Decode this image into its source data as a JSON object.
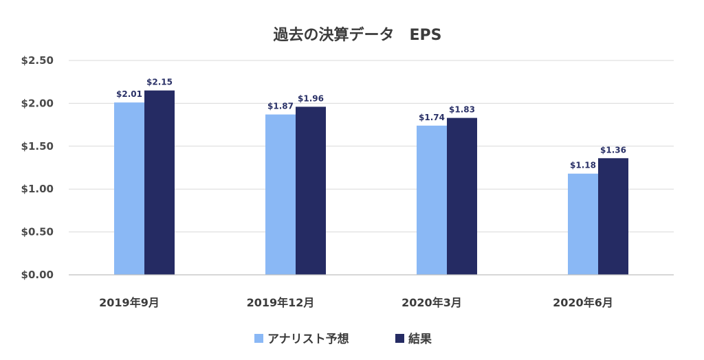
{
  "chart_data": {
    "type": "bar",
    "title": "過去の決算データ　EPS",
    "categories": [
      "2019年9月",
      "2019年12月",
      "2020年3月",
      "2020年6月"
    ],
    "series": [
      {
        "name": "アナリスト予想",
        "values": [
          2.01,
          1.87,
          1.74,
          1.18
        ],
        "color": "#8ab8f5",
        "labels": [
          "$2.01",
          "$1.87",
          "$1.74",
          "$1.18"
        ]
      },
      {
        "name": "結果",
        "values": [
          2.15,
          1.96,
          1.83,
          1.36
        ],
        "color": "#252b63",
        "labels": [
          "$2.15",
          "$1.96",
          "$1.83",
          "$1.36"
        ]
      }
    ],
    "yticks": [
      0,
      0.5,
      1.0,
      1.5,
      2.0,
      2.5
    ],
    "ytick_labels": [
      "$0.00",
      "$0.50",
      "$1.00",
      "$1.50",
      "$2.00",
      "$2.50"
    ],
    "ylim": [
      0,
      2.5
    ],
    "grid": true,
    "legend": "bottom"
  }
}
